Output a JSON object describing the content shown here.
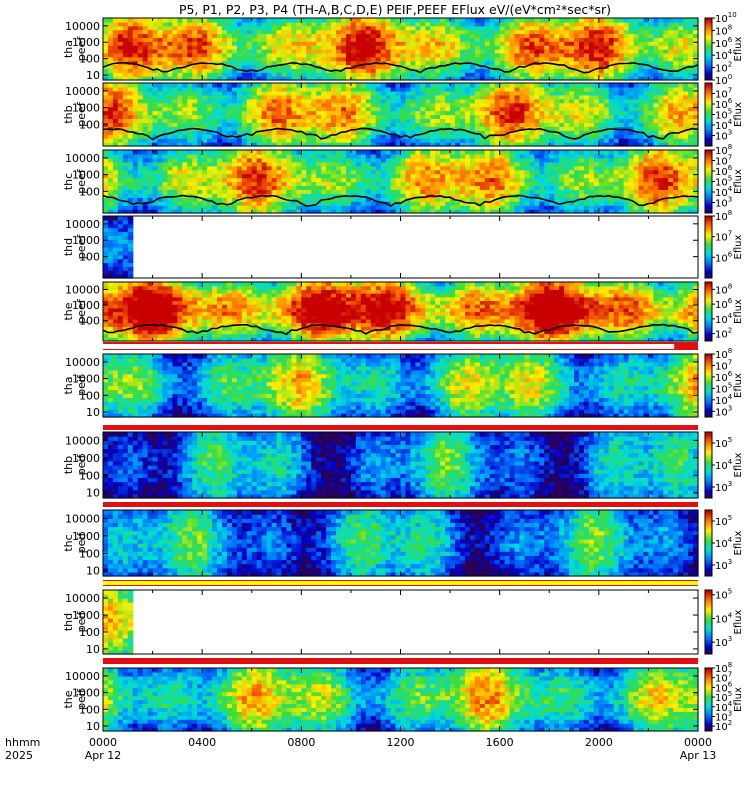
{
  "title": "P5, P1, P2, P3, P4 (TH-A,B,C,D,E) PEIF,PEEF EFlux eV/(eV*cm²*sec*sr)",
  "time_axis": {
    "label_row1": "hhmm",
    "label_row2": "2025",
    "ticks": [
      {
        "t": 0,
        "top": "0000",
        "bottom": "Apr 12"
      },
      {
        "t": 4,
        "top": "0400",
        "bottom": ""
      },
      {
        "t": 8,
        "top": "0800",
        "bottom": ""
      },
      {
        "t": 12,
        "top": "1200",
        "bottom": ""
      },
      {
        "t": 16,
        "top": "1600",
        "bottom": ""
      },
      {
        "t": 20,
        "top": "2000",
        "bottom": ""
      },
      {
        "t": 24,
        "top": "0000",
        "bottom": "Apr 13"
      }
    ]
  },
  "colorbar_label": "Eflux",
  "chart_data": {
    "type": "heatmap",
    "x_units": "hours from 2025-04-12 00:00",
    "xlim": [
      0,
      24
    ],
    "panels": [
      {
        "id": "tha-peef",
        "label_top": "tha",
        "label_bottom": "peef",
        "energy_ylim": [
          5,
          30000
        ],
        "yticks": [
          {
            "v": 10,
            "t": "10"
          },
          {
            "v": 100,
            "t": "100"
          },
          {
            "v": 1000,
            "t": "1000"
          },
          {
            "v": 10000,
            "t": "10000"
          }
        ],
        "cb_range": [
          0,
          10
        ],
        "cb_ticks": [
          {
            "p": 0,
            "b": "10",
            "e": "0"
          },
          {
            "p": 2,
            "b": "10",
            "e": "2"
          },
          {
            "p": 4,
            "b": "10",
            "e": "4"
          },
          {
            "p": 6,
            "b": "10",
            "e": "6"
          },
          {
            "p": 8,
            "b": "10",
            "e": "8"
          },
          {
            "p": 10,
            "b": "10",
            "e": "10"
          }
        ],
        "data_end": 24,
        "base": 3.3,
        "offset": 0,
        "bar": "none",
        "spacecraft_potential_line": true
      },
      {
        "id": "thb-peef",
        "label_top": "thb",
        "label_bottom": "peef",
        "energy_ylim": [
          5,
          30000
        ],
        "yticks": [
          {
            "v": 100,
            "t": "100"
          },
          {
            "v": 1000,
            "t": "1000"
          },
          {
            "v": 10000,
            "t": "10000"
          }
        ],
        "cb_range": [
          2,
          8
        ],
        "cb_ticks": [
          {
            "p": 3,
            "b": "10",
            "e": "3"
          },
          {
            "p": 4,
            "b": "10",
            "e": "4"
          },
          {
            "p": 5,
            "b": "10",
            "e": "5"
          },
          {
            "p": 6,
            "b": "10",
            "e": "6"
          },
          {
            "p": 7,
            "b": "10",
            "e": "7"
          }
        ],
        "data_end": 24,
        "base": 2.9,
        "offset": 1,
        "bar": "none",
        "spacecraft_potential_line": true
      },
      {
        "id": "thc-peef",
        "label_top": "thc",
        "label_bottom": "peef",
        "energy_ylim": [
          5,
          30000
        ],
        "yticks": [
          {
            "v": 100,
            "t": "100"
          },
          {
            "v": 1000,
            "t": "1000"
          },
          {
            "v": 10000,
            "t": "10000"
          }
        ],
        "cb_range": [
          2,
          8
        ],
        "cb_ticks": [
          {
            "p": 3,
            "b": "10",
            "e": "3"
          },
          {
            "p": 4,
            "b": "10",
            "e": "4"
          },
          {
            "p": 5,
            "b": "10",
            "e": "5"
          },
          {
            "p": 6,
            "b": "10",
            "e": "6"
          },
          {
            "p": 7,
            "b": "10",
            "e": "7"
          },
          {
            "p": 8,
            "b": "10",
            "e": "8"
          }
        ],
        "data_end": 24,
        "base": 2.9,
        "offset": 2,
        "bar": "none",
        "spacecraft_potential_line": true
      },
      {
        "id": "thd-peef",
        "label_top": "thd",
        "label_bottom": "peef",
        "energy_ylim": [
          5,
          30000
        ],
        "yticks": [
          {
            "v": 100,
            "t": "100"
          },
          {
            "v": 1000,
            "t": "1000"
          },
          {
            "v": 10000,
            "t": "10000"
          }
        ],
        "cb_range": [
          5,
          8
        ],
        "cb_ticks": [
          {
            "p": 6,
            "b": "10",
            "e": "6"
          },
          {
            "p": 7,
            "b": "10",
            "e": "7"
          },
          {
            "p": 8,
            "b": "10",
            "e": "8"
          }
        ],
        "data_end": 1.25,
        "base": 2.0,
        "offset": 3,
        "bar": "none",
        "spacecraft_potential_line": false
      },
      {
        "id": "the-peef",
        "label_top": "the",
        "label_bottom": "peef",
        "energy_ylim": [
          5,
          30000
        ],
        "yticks": [
          {
            "v": 100,
            "t": "100"
          },
          {
            "v": 1000,
            "t": "1000"
          },
          {
            "v": 10000,
            "t": "10000"
          }
        ],
        "cb_range": [
          1,
          9
        ],
        "cb_ticks": [
          {
            "p": 2,
            "b": "10",
            "e": "2"
          },
          {
            "p": 4,
            "b": "10",
            "e": "4"
          },
          {
            "p": 6,
            "b": "10",
            "e": "6"
          },
          {
            "p": 8,
            "b": "10",
            "e": "8"
          }
        ],
        "data_end": 24,
        "base": 3.9,
        "offset": 4,
        "bar": "red-white",
        "spacecraft_potential_line": true
      },
      {
        "id": "tha-peif",
        "label_top": "tha",
        "label_bottom": "peif",
        "energy_ylim": [
          5,
          30000
        ],
        "yticks": [
          {
            "v": 10,
            "t": "10"
          },
          {
            "v": 100,
            "t": "100"
          },
          {
            "v": 1000,
            "t": "1000"
          },
          {
            "v": 10000,
            "t": "10000"
          }
        ],
        "cb_range": [
          2.5,
          8
        ],
        "cb_ticks": [
          {
            "p": 3,
            "b": "10",
            "e": "3"
          },
          {
            "p": 4,
            "b": "10",
            "e": "4"
          },
          {
            "p": 5,
            "b": "10",
            "e": "5"
          },
          {
            "p": 6,
            "b": "10",
            "e": "6"
          },
          {
            "p": 7,
            "b": "10",
            "e": "7"
          },
          {
            "p": 8,
            "b": "10",
            "e": "8"
          }
        ],
        "data_end": 24,
        "base": 2.2,
        "offset": 5,
        "bar": "red",
        "spacecraft_potential_line": false
      },
      {
        "id": "thb-peif",
        "label_top": "thb",
        "label_bottom": "peif",
        "energy_ylim": [
          5,
          30000
        ],
        "yticks": [
          {
            "v": 10,
            "t": "10"
          },
          {
            "v": 100,
            "t": "100"
          },
          {
            "v": 1000,
            "t": "1000"
          },
          {
            "v": 10000,
            "t": "10000"
          }
        ],
        "cb_range": [
          2.5,
          5.5
        ],
        "cb_ticks": [
          {
            "p": 3,
            "b": "10",
            "e": "3"
          },
          {
            "p": 4,
            "b": "10",
            "e": "4"
          },
          {
            "p": 5,
            "b": "10",
            "e": "5"
          }
        ],
        "data_end": 24,
        "base": 1.3,
        "offset": 6,
        "bar": "red",
        "spacecraft_potential_line": false
      },
      {
        "id": "thc-peif",
        "label_top": "thc",
        "label_bottom": "peif",
        "energy_ylim": [
          5,
          30000
        ],
        "yticks": [
          {
            "v": 10,
            "t": "10"
          },
          {
            "v": 100,
            "t": "100"
          },
          {
            "v": 1000,
            "t": "1000"
          },
          {
            "v": 10000,
            "t": "10000"
          }
        ],
        "cb_range": [
          2.5,
          5.5
        ],
        "cb_ticks": [
          {
            "p": 3,
            "b": "10",
            "e": "3"
          },
          {
            "p": 4,
            "b": "10",
            "e": "4"
          },
          {
            "p": 5,
            "b": "10",
            "e": "5"
          }
        ],
        "data_end": 24,
        "base": 1.4,
        "offset": 7,
        "bar": "red-yellow",
        "spacecraft_potential_line": false
      },
      {
        "id": "thd-peif",
        "label_top": "thd",
        "label_bottom": "peif",
        "energy_ylim": [
          5,
          30000
        ],
        "yticks": [
          {
            "v": 10,
            "t": "10"
          },
          {
            "v": 100,
            "t": "100"
          },
          {
            "v": 1000,
            "t": "1000"
          },
          {
            "v": 10000,
            "t": "10000"
          }
        ],
        "cb_range": [
          2.5,
          5.2
        ],
        "cb_ticks": [
          {
            "p": 3,
            "b": "10",
            "e": "3"
          },
          {
            "p": 4,
            "b": "10",
            "e": "4"
          },
          {
            "p": 5,
            "b": "10",
            "e": "5"
          }
        ],
        "data_end": 1.25,
        "base": 2.2,
        "offset": 8,
        "bar": "red",
        "spacecraft_potential_line": false
      },
      {
        "id": "the-peif",
        "label_top": "the",
        "label_bottom": "peif",
        "energy_ylim": [
          5,
          30000
        ],
        "yticks": [
          {
            "v": 10,
            "t": "10"
          },
          {
            "v": 100,
            "t": "100"
          },
          {
            "v": 1000,
            "t": "1000"
          },
          {
            "v": 10000,
            "t": "10000"
          }
        ],
        "cb_range": [
          1.5,
          8
        ],
        "cb_ticks": [
          {
            "p": 2,
            "b": "10",
            "e": "2"
          },
          {
            "p": 3,
            "b": "10",
            "e": "3"
          },
          {
            "p": 4,
            "b": "10",
            "e": "4"
          },
          {
            "p": 5,
            "b": "10",
            "e": "5"
          },
          {
            "p": 6,
            "b": "10",
            "e": "6"
          },
          {
            "p": 7,
            "b": "10",
            "e": "7"
          },
          {
            "p": 8,
            "b": "10",
            "e": "8"
          }
        ],
        "data_end": 24,
        "base": 2.4,
        "offset": 9,
        "bar": "red",
        "spacecraft_potential_line": false
      }
    ]
  }
}
